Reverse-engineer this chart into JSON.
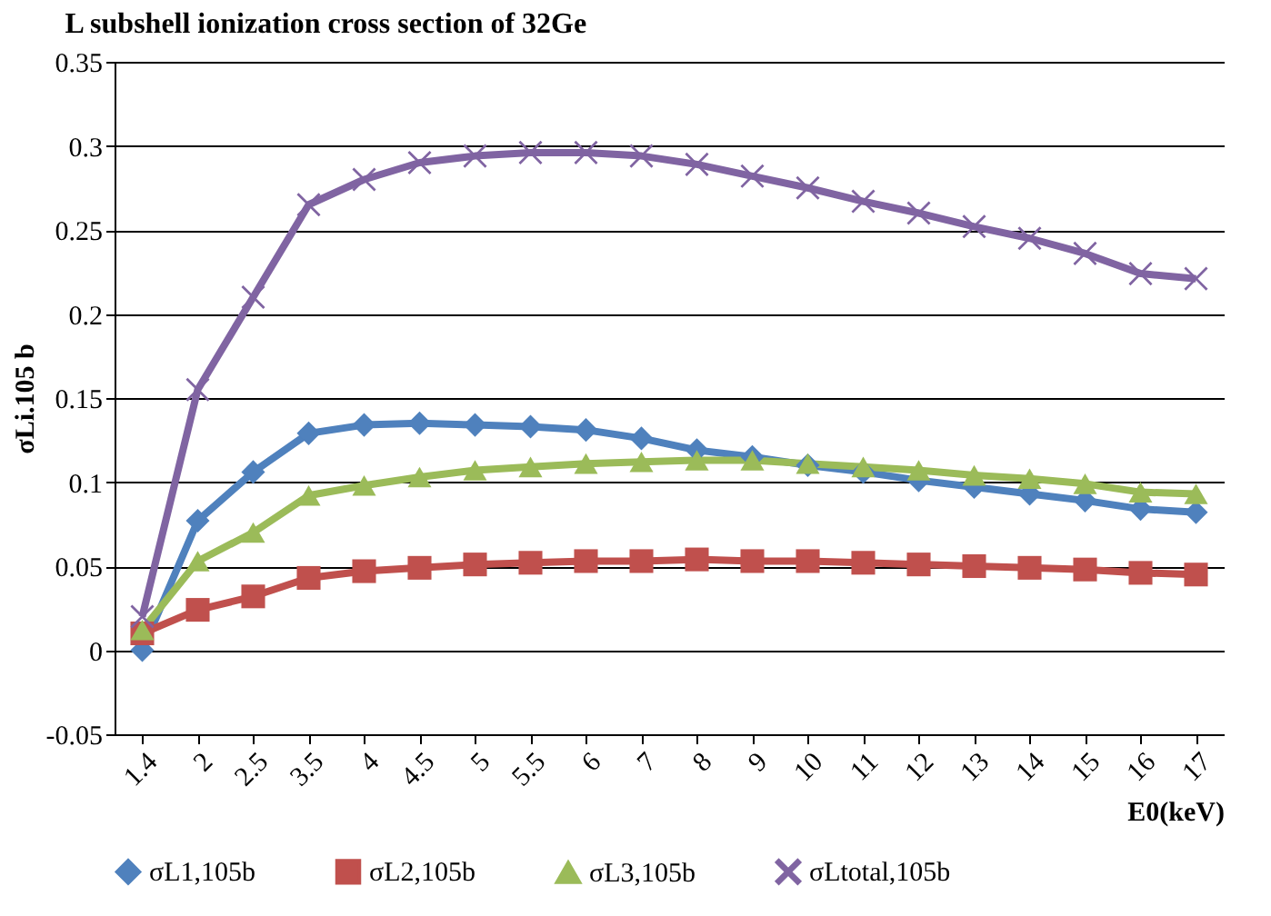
{
  "chart_data": {
    "type": "line",
    "title": "L subshell ionization cross section of 32Ge",
    "xlabel": "E0(keV)",
    "ylabel": "σLi.105 b",
    "categories": [
      "1.4",
      "2",
      "2.5",
      "3.5",
      "4",
      "4.5",
      "5",
      "5.5",
      "6",
      "7",
      "8",
      "9",
      "10",
      "11",
      "12",
      "13",
      "14",
      "15",
      "16",
      "17"
    ],
    "series": [
      {
        "name": "σL1,105b",
        "color": "#4f81bd",
        "marker": "diamond",
        "values": [
          0,
          0.077,
          0.106,
          0.129,
          0.134,
          0.135,
          0.134,
          0.133,
          0.131,
          0.126,
          0.119,
          0.115,
          0.11,
          0.106,
          0.101,
          0.097,
          0.093,
          0.089,
          0.084,
          0.082
        ]
      },
      {
        "name": "σL2,105b",
        "color": "#c0504d",
        "marker": "square",
        "values": [
          0.01,
          0.024,
          0.032,
          0.043,
          0.047,
          0.049,
          0.051,
          0.052,
          0.053,
          0.053,
          0.054,
          0.053,
          0.053,
          0.052,
          0.051,
          0.05,
          0.049,
          0.048,
          0.046,
          0.045
        ]
      },
      {
        "name": "σL3,105b",
        "color": "#9bbb59",
        "marker": "triangle",
        "values": [
          0.012,
          0.053,
          0.07,
          0.092,
          0.098,
          0.103,
          0.107,
          0.109,
          0.111,
          0.112,
          0.113,
          0.113,
          0.111,
          0.109,
          0.107,
          0.104,
          0.102,
          0.099,
          0.094,
          0.093
        ]
      },
      {
        "name": "σLtotal,105b",
        "color": "#8064a2",
        "marker": "cross",
        "values": [
          0.02,
          0.155,
          0.21,
          0.265,
          0.28,
          0.29,
          0.294,
          0.296,
          0.296,
          0.294,
          0.289,
          0.282,
          0.275,
          0.267,
          0.26,
          0.252,
          0.245,
          0.236,
          0.224,
          0.221
        ]
      }
    ],
    "ylim": [
      -0.05,
      0.35
    ],
    "yticks": [
      -0.05,
      0,
      0.05,
      0.1,
      0.15,
      0.2,
      0.25,
      0.3,
      0.35
    ],
    "grid": "y",
    "legend": "bottom",
    "line_style": "solid"
  }
}
